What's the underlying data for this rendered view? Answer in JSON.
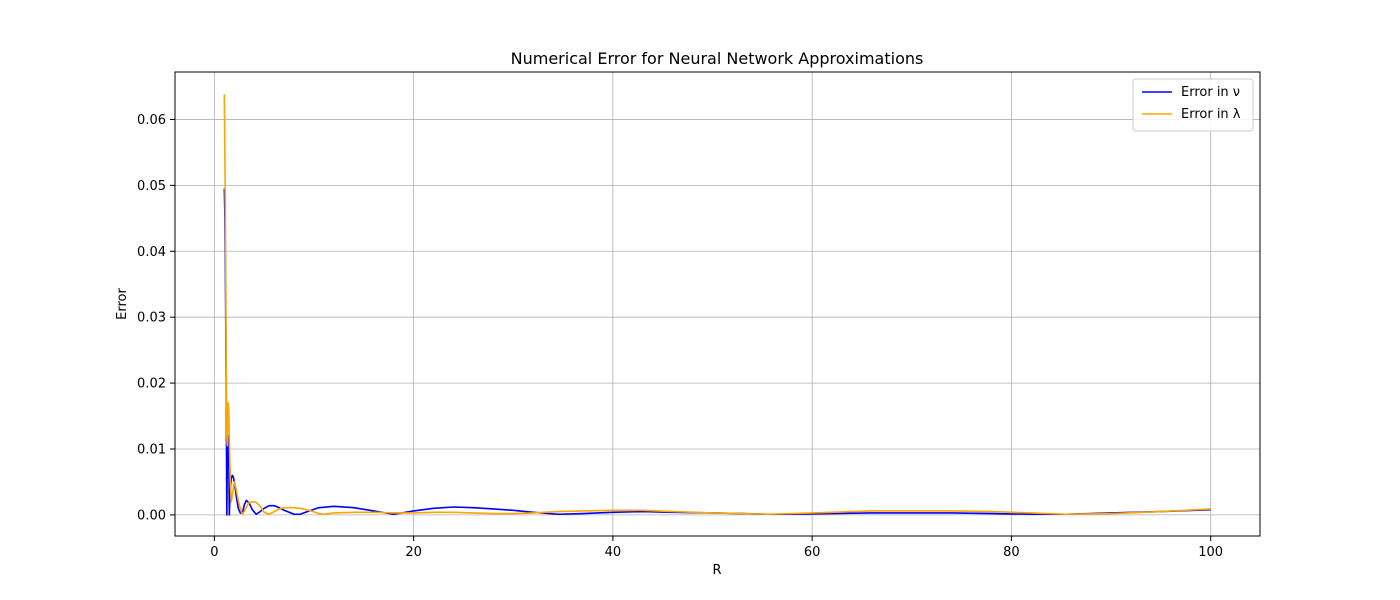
{
  "chart_data": {
    "type": "line",
    "title": "Numerical Error for Neural Network Approximations",
    "xlabel": "R",
    "ylabel": "Error",
    "xlim": [
      -3.95,
      104.95
    ],
    "ylim": [
      -0.0032,
      0.0672
    ],
    "xticks": [
      0,
      20,
      40,
      60,
      80,
      100
    ],
    "xtick_labels": [
      "0",
      "20",
      "40",
      "60",
      "80",
      "100"
    ],
    "yticks": [
      0.0,
      0.01,
      0.02,
      0.03,
      0.04,
      0.05,
      0.06
    ],
    "ytick_labels": [
      "0.00",
      "0.01",
      "0.02",
      "0.03",
      "0.04",
      "0.05",
      "0.06"
    ],
    "grid": true,
    "legend_position": "top-right",
    "series": [
      {
        "name": "Error in ν",
        "color": "#0000ff",
        "x": [
          1.0,
          1.05,
          1.1,
          1.15,
          1.2,
          1.25,
          1.3,
          1.35,
          1.4,
          1.45,
          1.5,
          1.6,
          1.7,
          1.8,
          1.9,
          2.0,
          2.1,
          2.2,
          2.4,
          2.6,
          2.8,
          3.0,
          3.2,
          3.5,
          3.8,
          4.2,
          4.6,
          5.0,
          5.5,
          6.0,
          6.5,
          7.0,
          8.0,
          8.6,
          9.5,
          10.5,
          12.0,
          14.0,
          16.0,
          18.0,
          20.0,
          22.0,
          24.0,
          26.0,
          28.0,
          30.0,
          32.0,
          34.5,
          37.0,
          40.0,
          43.0,
          46.0,
          50.0,
          53.0,
          55.5,
          58.0,
          62.0,
          66.0,
          70.0,
          74.0,
          78.0,
          82.0,
          85.5,
          90.0,
          95.0,
          100.0
        ],
        "y": [
          0.0495,
          0.046,
          0.039,
          0.028,
          0.016,
          0.0,
          0.0083,
          0.0085,
          0.012,
          0.0085,
          0.0,
          0.004,
          0.0055,
          0.006,
          0.0058,
          0.005,
          0.004,
          0.0028,
          0.001,
          0.0003,
          0.0002,
          0.0015,
          0.0022,
          0.0018,
          0.0008,
          0.0001,
          0.0005,
          0.001,
          0.0014,
          0.0014,
          0.0011,
          0.0007,
          0.0001,
          0.0001,
          0.0006,
          0.0011,
          0.0013,
          0.0011,
          0.0006,
          0.0001,
          0.0006,
          0.001,
          0.0012,
          0.0011,
          0.0009,
          0.0007,
          0.0004,
          0.0001,
          0.0002,
          0.0004,
          0.0005,
          0.0004,
          0.0003,
          0.0002,
          0.0001,
          0.0001,
          0.0002,
          0.0003,
          0.0003,
          0.0003,
          0.0002,
          0.0001,
          0.0001,
          0.0003,
          0.0005,
          0.0008
        ]
      },
      {
        "name": "Error in λ",
        "color": "#ffa500",
        "x": [
          1.0,
          1.05,
          1.1,
          1.15,
          1.2,
          1.25,
          1.3,
          1.35,
          1.4,
          1.45,
          1.5,
          1.6,
          1.7,
          1.8,
          1.9,
          2.0,
          2.1,
          2.2,
          2.4,
          2.6,
          2.8,
          3.0,
          3.2,
          3.5,
          3.8,
          4.2,
          4.6,
          5.0,
          5.5,
          6.0,
          6.5,
          7.0,
          8.0,
          8.6,
          9.5,
          10.5,
          11.0,
          12.0,
          14.0,
          16.0,
          18.0,
          20.0,
          22.0,
          24.0,
          26.0,
          28.0,
          30.0,
          32.0,
          34.5,
          37.0,
          40.0,
          43.0,
          46.0,
          50.0,
          53.0,
          55.5,
          58.0,
          62.0,
          66.0,
          70.0,
          74.0,
          78.0,
          82.0,
          85.5,
          90.0,
          95.0,
          100.0
        ],
        "y": [
          0.0638,
          0.055,
          0.047,
          0.035,
          0.02,
          0.012,
          0.0105,
          0.0165,
          0.017,
          0.0155,
          0.012,
          0.005,
          0.002,
          0.003,
          0.004,
          0.005,
          0.0045,
          0.0038,
          0.0022,
          0.001,
          0.0001,
          0.0005,
          0.0012,
          0.0019,
          0.002,
          0.0019,
          0.0013,
          0.0004,
          0.0001,
          0.0005,
          0.0009,
          0.0011,
          0.0011,
          0.001,
          0.0007,
          0.0002,
          0.0001,
          0.0003,
          0.0004,
          0.0004,
          0.0003,
          0.0003,
          0.0004,
          0.0004,
          0.0003,
          0.0002,
          0.0002,
          0.0003,
          0.0005,
          0.0006,
          0.0007,
          0.0007,
          0.0005,
          0.0003,
          0.0002,
          0.0001,
          0.0002,
          0.0004,
          0.0006,
          0.0006,
          0.0006,
          0.0005,
          0.0003,
          0.0001,
          0.0002,
          0.0005,
          0.0009
        ]
      }
    ]
  }
}
